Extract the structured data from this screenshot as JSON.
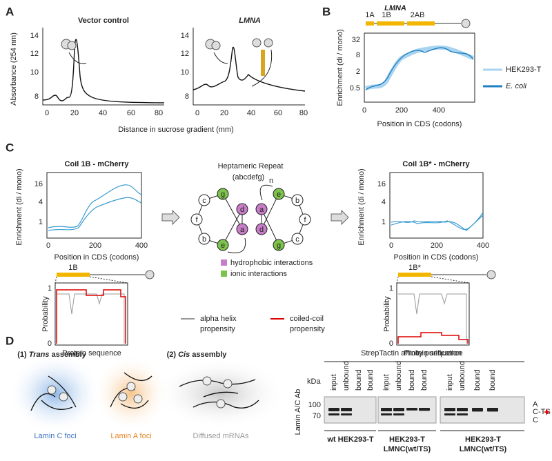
{
  "panels": {
    "A": {
      "letter": "A",
      "left_title": "Vector control",
      "right_title": "LMNA",
      "y_label": "Absorbance (254 nm)",
      "x_label": "Distance in sucrose gradient (mm)",
      "yticks": [
        "8",
        "10",
        "12",
        "14"
      ],
      "xticks": [
        "0",
        "20",
        "40",
        "60",
        "80"
      ]
    },
    "B": {
      "letter": "B",
      "title": "LMNA",
      "domains": [
        "1A",
        "1B",
        "2AB"
      ],
      "y_label": "Enrichment (di / mono)",
      "x_label": "Position in CDS (codons)",
      "yticks": [
        "0.5",
        "2",
        "8",
        "32"
      ],
      "xticks": [
        "0",
        "200",
        "400"
      ],
      "legend": [
        "HEK293-T",
        "E. coli"
      ]
    },
    "C": {
      "letter": "C",
      "left_title": "Coil 1B - mCherry",
      "right_title": "Coil 1B* - mCherry",
      "y_label": "Enrichment (di / mono)",
      "x_label": "Position in CDS (codons)",
      "yticks": [
        "1",
        "4",
        "16"
      ],
      "xticks": [
        "0",
        "200",
        "400"
      ],
      "left_domain": "1B",
      "right_domain": "1B*",
      "prob_label": "Probability",
      "prob_yticks": [
        "0",
        "1"
      ],
      "seq_label": "Protein sequence",
      "repeat_title": "Heptameric Repeat",
      "repeat_formula": "(abcdefg)",
      "repeat_sub": "n",
      "wheel_left": [
        "g",
        "c",
        "f",
        "b",
        "e",
        "d",
        "a"
      ],
      "wheel_right": [
        "e",
        "b",
        "f",
        "c",
        "g",
        "a",
        "d"
      ],
      "legend_hydrophobic": "hydrophobic interactions",
      "legend_ionic": "ionic interactions",
      "alpha_label": [
        "alpha helix",
        "propensity"
      ],
      "coil_label": [
        "coiled-coil",
        "propensity"
      ]
    },
    "D": {
      "letter": "D",
      "trans_prefix": "(1) ",
      "trans_word": "Trans",
      "trans_suffix": " assembly",
      "cis_prefix": "(2) ",
      "cis_word": "Cis",
      "cis_suffix": " assembly",
      "foci": [
        "Lamin C foci",
        "Lamin A foci",
        "Diffused mRNAs"
      ],
      "blot_title": "StrepTactin affinity purification",
      "kda": "kDa",
      "kda_ticks": [
        "100",
        "70"
      ],
      "antibody": "Lamin A/C Ab",
      "lanes": [
        "input",
        "unbound",
        "bound",
        "bound",
        "input",
        "unbound",
        "bound",
        "bound",
        "input",
        "unbound",
        "bound",
        "bound"
      ],
      "bands": [
        "A",
        "C-TS",
        "C"
      ],
      "groups": [
        [
          "wt HEK293-T"
        ],
        [
          "HEK293-T",
          "LMNC(wt/TS)"
        ],
        [
          "HEK293-T",
          "LMNC(wt/TS)"
        ]
      ]
    }
  }
}
